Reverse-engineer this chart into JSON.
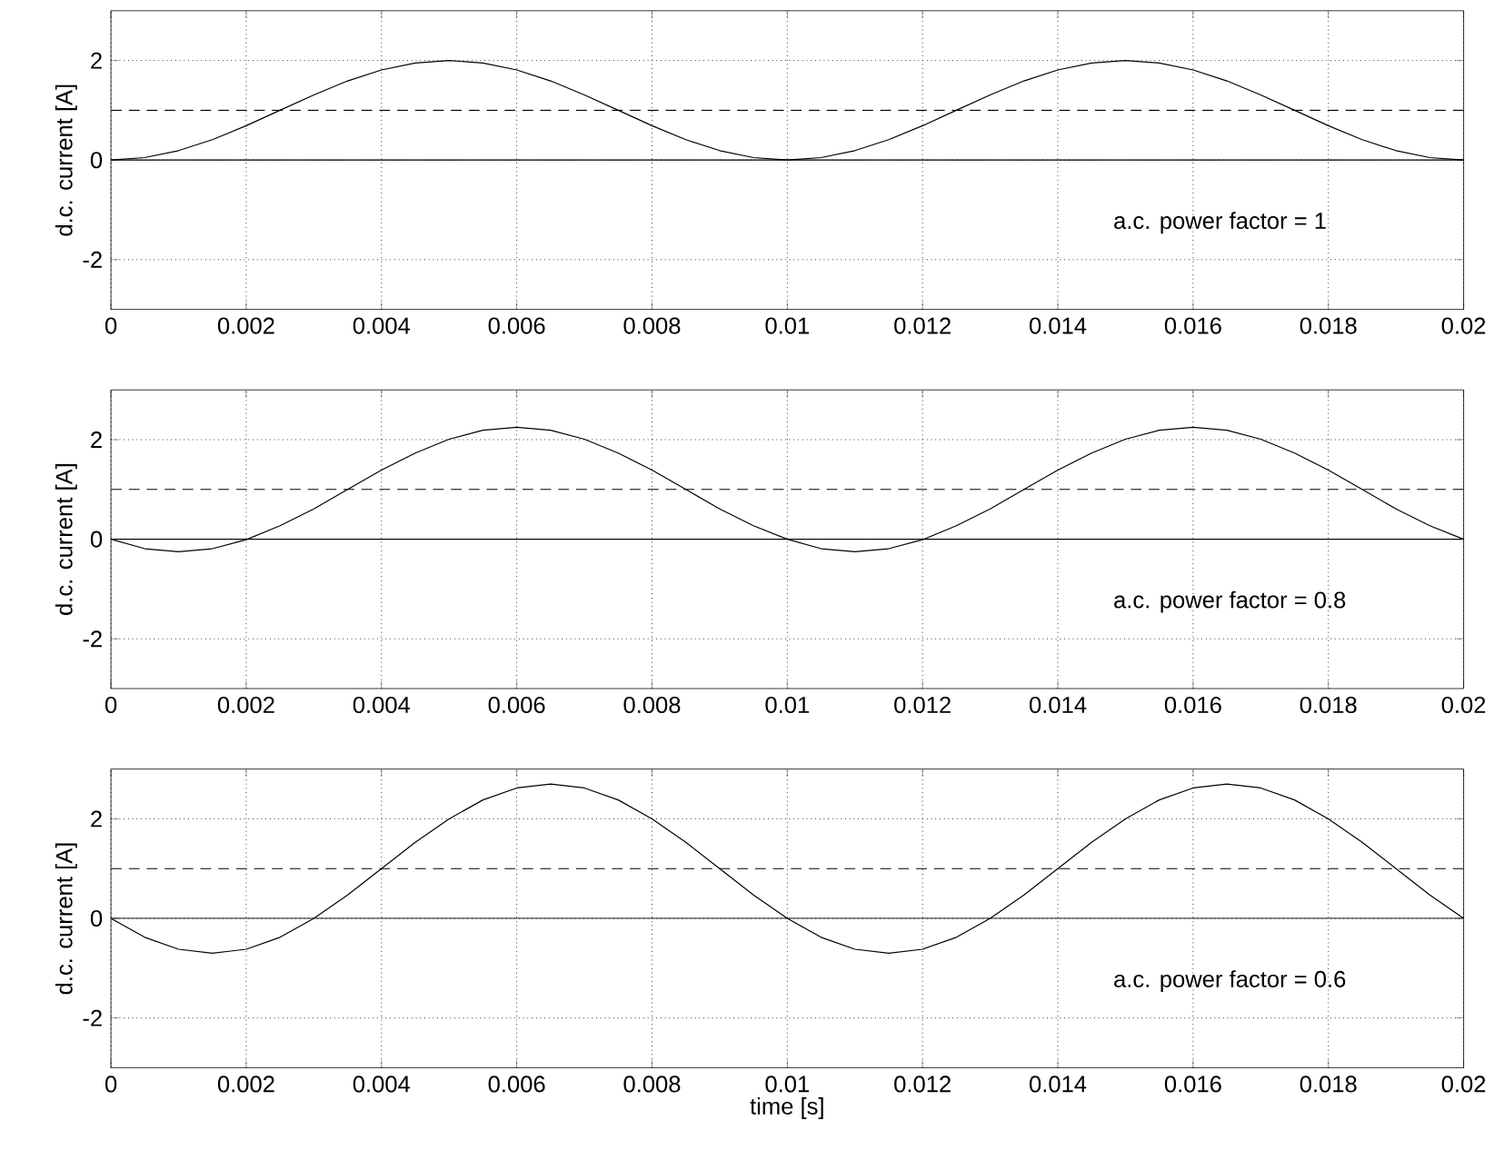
{
  "chart_data": [
    {
      "type": "line",
      "ylabel": "d.c. current [A]",
      "annotations": [
        "a.c. power factor = 1"
      ],
      "grid": true,
      "xlim": [
        0,
        0.02
      ],
      "ylim": [
        -3,
        3
      ],
      "xticks": [
        0,
        0.002,
        0.004,
        0.006,
        0.008,
        0.01,
        0.012,
        0.014,
        0.016,
        0.018,
        0.02
      ],
      "yticks": [
        -2,
        0,
        2
      ],
      "ref_lines": [
        {
          "axis": "y",
          "value": 0,
          "color": "#000000",
          "line_style": "solid"
        },
        {
          "axis": "y",
          "value": 1,
          "color": "#000000",
          "line_style": "dashed"
        }
      ],
      "x": [
        0,
        0.0005,
        0.001,
        0.0015,
        0.002,
        0.0025,
        0.003,
        0.0035,
        0.004,
        0.0045,
        0.005,
        0.0055,
        0.006,
        0.0065,
        0.007,
        0.0075,
        0.008,
        0.0085,
        0.009,
        0.0095,
        0.01,
        0.0105,
        0.011,
        0.0115,
        0.012,
        0.0125,
        0.013,
        0.0135,
        0.014,
        0.0145,
        0.015,
        0.0155,
        0.016,
        0.0165,
        0.017,
        0.0175,
        0.018,
        0.0185,
        0.019,
        0.0195,
        0.02
      ],
      "series": [
        {
          "color": "#000000",
          "values": [
            0,
            0.05,
            0.19,
            0.41,
            0.69,
            1,
            1.31,
            1.59,
            1.81,
            1.95,
            2,
            1.95,
            1.81,
            1.59,
            1.31,
            1,
            0.69,
            0.41,
            0.19,
            0.05,
            0,
            0.05,
            0.19,
            0.41,
            0.69,
            1,
            1.31,
            1.59,
            1.81,
            1.95,
            2,
            1.95,
            1.81,
            1.59,
            1.31,
            1,
            0.69,
            0.41,
            0.19,
            0.05,
            0
          ]
        }
      ]
    },
    {
      "type": "line",
      "ylabel": "d.c. current [A]",
      "annotations": [
        "a.c. power factor = 0.8"
      ],
      "grid": true,
      "xlim": [
        0,
        0.02
      ],
      "ylim": [
        -3,
        3
      ],
      "xticks": [
        0,
        0.002,
        0.004,
        0.006,
        0.008,
        0.01,
        0.012,
        0.014,
        0.016,
        0.018,
        0.02
      ],
      "yticks": [
        -2,
        0,
        2
      ],
      "ref_lines": [
        {
          "axis": "y",
          "value": 0,
          "color": "#000000",
          "line_style": "solid"
        },
        {
          "axis": "y",
          "value": 1,
          "color": "#000000",
          "line_style": "dashed"
        }
      ],
      "x": [
        0,
        0.0005,
        0.001,
        0.0015,
        0.002,
        0.0025,
        0.003,
        0.0035,
        0.004,
        0.0045,
        0.005,
        0.0055,
        0.006,
        0.0065,
        0.007,
        0.0075,
        0.008,
        0.0085,
        0.009,
        0.0095,
        0.01,
        0.0105,
        0.011,
        0.0115,
        0.012,
        0.0125,
        0.013,
        0.0135,
        0.014,
        0.0145,
        0.015,
        0.0155,
        0.016,
        0.0165,
        0.017,
        0.0175,
        0.018,
        0.0185,
        0.019,
        0.0195,
        0.02
      ],
      "series": [
        {
          "color": "#000000",
          "values": [
            0,
            -0.19,
            -0.25,
            -0.19,
            -0.01,
            0.27,
            0.61,
            1,
            1.39,
            1.73,
            2.01,
            2.19,
            2.25,
            2.19,
            2.01,
            1.73,
            1.39,
            1,
            0.61,
            0.27,
            0,
            -0.19,
            -0.25,
            -0.19,
            -0.01,
            0.27,
            0.61,
            1,
            1.39,
            1.73,
            2.01,
            2.19,
            2.25,
            2.19,
            2.01,
            1.73,
            1.39,
            1,
            0.61,
            0.27,
            0
          ]
        }
      ]
    },
    {
      "type": "line",
      "ylabel": "d.c. current [A]",
      "xlabel": "time [s]",
      "annotations": [
        "a.c. power factor = 0.6"
      ],
      "grid": true,
      "xlim": [
        0,
        0.02
      ],
      "ylim": [
        -3,
        3
      ],
      "xticks": [
        0,
        0.002,
        0.004,
        0.006,
        0.008,
        0.01,
        0.012,
        0.014,
        0.016,
        0.018,
        0.02
      ],
      "yticks": [
        -2,
        0,
        2
      ],
      "ref_lines": [
        {
          "axis": "y",
          "value": 0,
          "color": "#000000",
          "line_style": "solid"
        },
        {
          "axis": "y",
          "value": 1,
          "color": "#000000",
          "line_style": "dashed"
        }
      ],
      "x": [
        0,
        0.0005,
        0.001,
        0.0015,
        0.002,
        0.0025,
        0.003,
        0.0035,
        0.004,
        0.0045,
        0.005,
        0.0055,
        0.006,
        0.0065,
        0.007,
        0.0075,
        0.008,
        0.0085,
        0.009,
        0.0095,
        0.01,
        0.0105,
        0.011,
        0.0115,
        0.012,
        0.0125,
        0.013,
        0.0135,
        0.014,
        0.0145,
        0.015,
        0.0155,
        0.016,
        0.0165,
        0.017,
        0.0175,
        0.018,
        0.0185,
        0.019,
        0.0195,
        0.02
      ],
      "series": [
        {
          "color": "#000000",
          "values": [
            0,
            -0.38,
            -0.62,
            -0.7,
            -0.62,
            -0.38,
            0,
            0.47,
            1,
            1.53,
            2,
            2.38,
            2.62,
            2.7,
            2.62,
            2.38,
            2,
            1.53,
            1,
            0.47,
            0,
            -0.38,
            -0.62,
            -0.7,
            -0.62,
            -0.38,
            0,
            0.47,
            1,
            1.53,
            2,
            2.38,
            2.62,
            2.7,
            2.62,
            2.38,
            2,
            1.53,
            1,
            0.47,
            0
          ]
        }
      ]
    }
  ]
}
